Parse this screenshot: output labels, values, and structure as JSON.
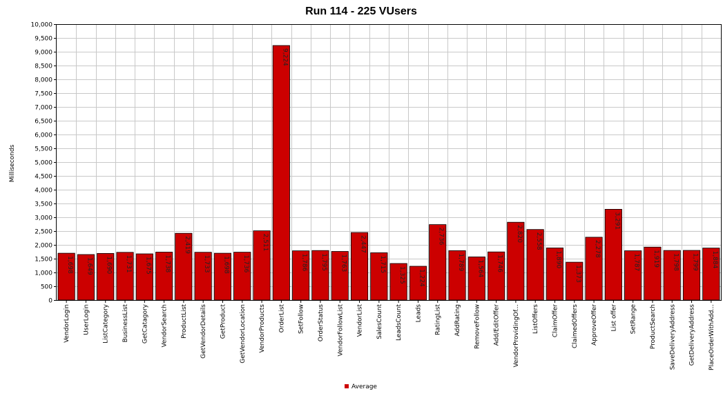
{
  "chart_data": {
    "type": "bar",
    "title": "Run 114 - 225 VUsers",
    "xlabel": "",
    "ylabel": "Milliseconds",
    "ylim": [
      0,
      10000
    ],
    "ytick_step": 500,
    "ytick_labels": [
      "0",
      "500",
      "1,000",
      "1,500",
      "2,000",
      "2,500",
      "3,000",
      "3,500",
      "4,000",
      "4,500",
      "5,000",
      "5,500",
      "6,000",
      "6,500",
      "7,000",
      "7,500",
      "8,000",
      "8,500",
      "9,000",
      "9,500",
      "10,000"
    ],
    "grid": true,
    "legend_position": "bottom-center",
    "bar_color": "#cc0000",
    "categories": [
      "VendorLogin",
      "UserLogin",
      "ListCategory",
      "BusinessList",
      "GetCatagory",
      "VendorSearch",
      "ProductList",
      "GetVendorDetails",
      "GetProduct",
      "GetVendorLocation",
      "VendorProducts",
      "OrderList",
      "SetFollow",
      "OrderStatus",
      "VendorFollowList",
      "VendorList",
      "SalesCount",
      "LeadsCount",
      "Leads",
      "RatingList",
      "AddRating",
      "RemoveFollow",
      "Add/EditOffer",
      "VendorProvidingOf...",
      "ListOffers",
      "ClaimOffer",
      "ClaimedOffers",
      "ApproveOffer",
      "List offer",
      "SetRange",
      "ProductSearch",
      "SaveDeliveryAddress",
      "GetDeliveryAddress",
      "PlaceOrderWithAdd..."
    ],
    "series": [
      {
        "name": "Average",
        "values": [
          1698,
          1649,
          1690,
          1731,
          1675,
          1738,
          2419,
          1733,
          1698,
          1736,
          2511,
          9224,
          1786,
          1795,
          1763,
          2447,
          1715,
          1325,
          1224,
          2736,
          1789,
          1564,
          1746,
          2820,
          2558,
          1890,
          1373,
          2278,
          3291,
          1787,
          1919,
          1798,
          1799,
          1884
        ],
        "labels": [
          "1,698",
          "1,649",
          "1,690",
          "1,731",
          "1,675",
          "1,738",
          "2,419",
          "1,733",
          "1,698",
          "1,736",
          "2,511",
          "9,224",
          "1,786",
          "1,795",
          "1,763",
          "2,447",
          "1,715",
          "1,325",
          "1,224",
          "2,736",
          "1,789",
          "1,564",
          "1,746",
          "2,820",
          "2,558",
          "1,890",
          "1,373",
          "2,278",
          "3,291",
          "1,787",
          "1,919",
          "1,798",
          "1,799",
          "1,884"
        ]
      }
    ]
  }
}
